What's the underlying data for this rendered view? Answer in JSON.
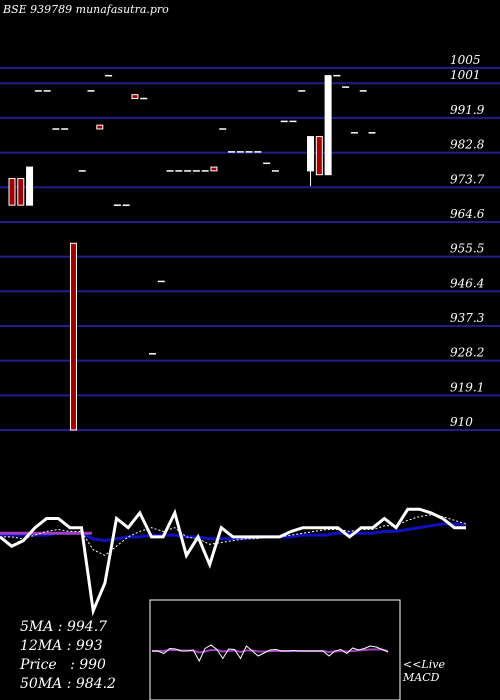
{
  "chart_data": {
    "type": "candlestick",
    "title": "BSE 939789 munafasutra.pro",
    "ylim": [
      910,
      1005
    ],
    "y_ticks": [
      1005,
      1001,
      991.9,
      982.8,
      973.7,
      964.6,
      955.5,
      946.4,
      937.3,
      928.2,
      919.1,
      910
    ],
    "y_tick_labels": [
      "1005",
      "1001",
      "991.9",
      "982.8",
      "973.7",
      "964.6",
      "955.5",
      "946.4",
      "937.3",
      "928.2",
      "919.1",
      "910"
    ],
    "grid": true,
    "candles": [
      {
        "o": 976.0,
        "h": 976.0,
        "l": 969.0,
        "c": 969.0,
        "dir": "down"
      },
      {
        "o": 976.0,
        "h": 976.0,
        "l": 969.0,
        "c": 969.0,
        "dir": "down"
      },
      {
        "o": 969.0,
        "h": 979.0,
        "l": 969.0,
        "c": 979.0,
        "dir": "up"
      },
      {
        "o": 999.0,
        "h": 999.0,
        "l": 999.0,
        "c": 999.0,
        "dir": "flat"
      },
      {
        "o": 999.0,
        "h": 999.0,
        "l": 999.0,
        "c": 999.0,
        "dir": "flat"
      },
      {
        "o": 989.0,
        "h": 989.0,
        "l": 989.0,
        "c": 989.0,
        "dir": "flat"
      },
      {
        "o": 989.0,
        "h": 989.0,
        "l": 989.0,
        "c": 989.0,
        "dir": "flat"
      },
      {
        "o": 959.0,
        "h": 959.0,
        "l": 910.0,
        "c": 910.0,
        "dir": "down"
      },
      {
        "o": 978.0,
        "h": 978.0,
        "l": 978.0,
        "c": 978.0,
        "dir": "flat"
      },
      {
        "o": 999.0,
        "h": 999.0,
        "l": 999.0,
        "c": 999.0,
        "dir": "flat"
      },
      {
        "o": 990.0,
        "h": 990.0,
        "l": 989.0,
        "c": 989.0,
        "dir": "down"
      },
      {
        "o": 1003.0,
        "h": 1003.0,
        "l": 1003.0,
        "c": 1003.0,
        "dir": "flat"
      },
      {
        "o": 969.0,
        "h": 969.0,
        "l": 969.0,
        "c": 969.0,
        "dir": "flat"
      },
      {
        "o": 969.0,
        "h": 969.0,
        "l": 969.0,
        "c": 969.0,
        "dir": "flat"
      },
      {
        "o": 998.0,
        "h": 998.0,
        "l": 997.0,
        "c": 997.0,
        "dir": "down"
      },
      {
        "o": 997.0,
        "h": 997.0,
        "l": 997.0,
        "c": 997.0,
        "dir": "flat"
      },
      {
        "o": 930.0,
        "h": 930.0,
        "l": 930.0,
        "c": 930.0,
        "dir": "flat"
      },
      {
        "o": 949.0,
        "h": 949.0,
        "l": 949.0,
        "c": 949.0,
        "dir": "flat"
      },
      {
        "o": 978.0,
        "h": 978.0,
        "l": 978.0,
        "c": 978.0,
        "dir": "flat"
      },
      {
        "o": 978.0,
        "h": 978.0,
        "l": 978.0,
        "c": 978.0,
        "dir": "flat"
      },
      {
        "o": 978.0,
        "h": 978.0,
        "l": 978.0,
        "c": 978.0,
        "dir": "flat"
      },
      {
        "o": 978.0,
        "h": 978.0,
        "l": 978.0,
        "c": 978.0,
        "dir": "flat"
      },
      {
        "o": 978.0,
        "h": 978.0,
        "l": 978.0,
        "c": 978.0,
        "dir": "flat"
      },
      {
        "o": 979.0,
        "h": 979.0,
        "l": 978.0,
        "c": 978.0,
        "dir": "down"
      },
      {
        "o": 989.0,
        "h": 989.0,
        "l": 989.0,
        "c": 989.0,
        "dir": "flat"
      },
      {
        "o": 983.0,
        "h": 983.0,
        "l": 983.0,
        "c": 983.0,
        "dir": "flat"
      },
      {
        "o": 983.0,
        "h": 983.0,
        "l": 983.0,
        "c": 983.0,
        "dir": "flat"
      },
      {
        "o": 983.0,
        "h": 983.0,
        "l": 983.0,
        "c": 983.0,
        "dir": "flat"
      },
      {
        "o": 983.0,
        "h": 983.0,
        "l": 983.0,
        "c": 983.0,
        "dir": "flat"
      },
      {
        "o": 980.0,
        "h": 980.0,
        "l": 980.0,
        "c": 980.0,
        "dir": "flat"
      },
      {
        "o": 978.0,
        "h": 978.0,
        "l": 978.0,
        "c": 978.0,
        "dir": "flat"
      },
      {
        "o": 991.0,
        "h": 991.0,
        "l": 991.0,
        "c": 991.0,
        "dir": "flat"
      },
      {
        "o": 991.0,
        "h": 991.0,
        "l": 991.0,
        "c": 991.0,
        "dir": "flat"
      },
      {
        "o": 999.0,
        "h": 999.0,
        "l": 999.0,
        "c": 999.0,
        "dir": "flat"
      },
      {
        "o": 978.0,
        "h": 987.0,
        "l": 974.0,
        "c": 987.0,
        "dir": "up"
      },
      {
        "o": 987.0,
        "h": 987.0,
        "l": 977.0,
        "c": 977.0,
        "dir": "down"
      },
      {
        "o": 977.0,
        "h": 1003.0,
        "l": 977.0,
        "c": 1003.0,
        "dir": "up"
      },
      {
        "o": 1003.0,
        "h": 1003.0,
        "l": 1003.0,
        "c": 1003.0,
        "dir": "flat"
      },
      {
        "o": 1000.0,
        "h": 1000.0,
        "l": 1000.0,
        "c": 1000.0,
        "dir": "flat"
      },
      {
        "o": 988.0,
        "h": 988.0,
        "l": 988.0,
        "c": 988.0,
        "dir": "flat"
      },
      {
        "o": 999.0,
        "h": 999.0,
        "l": 999.0,
        "c": 999.0,
        "dir": "flat"
      },
      {
        "o": 988.0,
        "h": 988.0,
        "l": 988.0,
        "c": 988.0,
        "dir": "flat"
      }
    ],
    "price_line": [
      985,
      980,
      983,
      990,
      995,
      995,
      990,
      990,
      945,
      960,
      995,
      990,
      998,
      985,
      985,
      998,
      975,
      985,
      970,
      990,
      985,
      985,
      985,
      985,
      985,
      988,
      990,
      990,
      990,
      990,
      985,
      990,
      990,
      995,
      990,
      1000,
      1000,
      998,
      995,
      990,
      990
    ],
    "ma_fast": [
      985,
      985,
      984,
      986,
      988,
      989,
      988,
      988,
      978,
      975,
      980,
      985,
      988,
      990,
      988,
      990,
      985,
      984,
      981,
      982,
      983,
      984,
      984,
      985,
      985,
      986,
      987,
      988,
      989,
      989,
      988,
      989,
      989,
      991,
      991,
      994,
      996,
      997,
      996,
      994,
      992
    ],
    "ma_slow": [
      986,
      986,
      986,
      986,
      986,
      987,
      987,
      987,
      984,
      983,
      984,
      985,
      985,
      986,
      986,
      986,
      985,
      985,
      984,
      984,
      984,
      984,
      985,
      985,
      985,
      985,
      986,
      986,
      986,
      987,
      987,
      987,
      987,
      988,
      988,
      989,
      990,
      991,
      992,
      992,
      992
    ],
    "ma_long": [
      987,
      987,
      987,
      987,
      987,
      987,
      987,
      987,
      987,
      987,
      987,
      987
    ],
    "macd": [
      0.0,
      0.0,
      -0.5,
      0.5,
      0.4,
      0.0,
      0.0,
      0.2,
      -2.0,
      0.5,
      1.2,
      0.3,
      -1.5,
      0.4,
      0.3,
      -1.5,
      1.0,
      0.0,
      -1.0,
      -0.4,
      0.2,
      0.3,
      0.0,
      0.0,
      0.1,
      0.0,
      0.0,
      0.0,
      0.0,
      0.0,
      -1.0,
      0.0,
      0.3,
      -0.5,
      0.6,
      0.2,
      0.5,
      1.0,
      0.8,
      0.3,
      -0.2
    ],
    "macd_signal": [
      0.0,
      0.0,
      0.0,
      0.2,
      0.2,
      0.1,
      0.1,
      0.1,
      -0.3,
      -0.1,
      0.2,
      0.2,
      -0.1,
      0.0,
      0.1,
      -0.2,
      0.1,
      0.1,
      -0.1,
      -0.1,
      0.0,
      0.0,
      0.0,
      0.0,
      0.0,
      0.0,
      0.0,
      0.0,
      0.0,
      0.0,
      -0.2,
      -0.1,
      0.0,
      -0.1,
      0.0,
      0.1,
      0.2,
      0.3,
      0.3,
      0.3,
      0.0
    ],
    "colors": {
      "background": "#000000",
      "grid": "#1e1e8c",
      "up": "#ffffff",
      "down": "#a00000",
      "price_line": "#ffffff",
      "ma_fast": "#ffffff",
      "ma_slow": "#1010c0",
      "ma_long": "#a040c0",
      "macd_line": "#ffffff",
      "macd_signal": "#a040c0"
    }
  },
  "stats": {
    "ma5": "5MA : 994.7",
    "ma12": "12MA : 993",
    "price": "Price   : 990",
    "ma50": "50MA : 984.2"
  },
  "macd_label": {
    "line1": "<<Live",
    "line2": "MACD"
  }
}
